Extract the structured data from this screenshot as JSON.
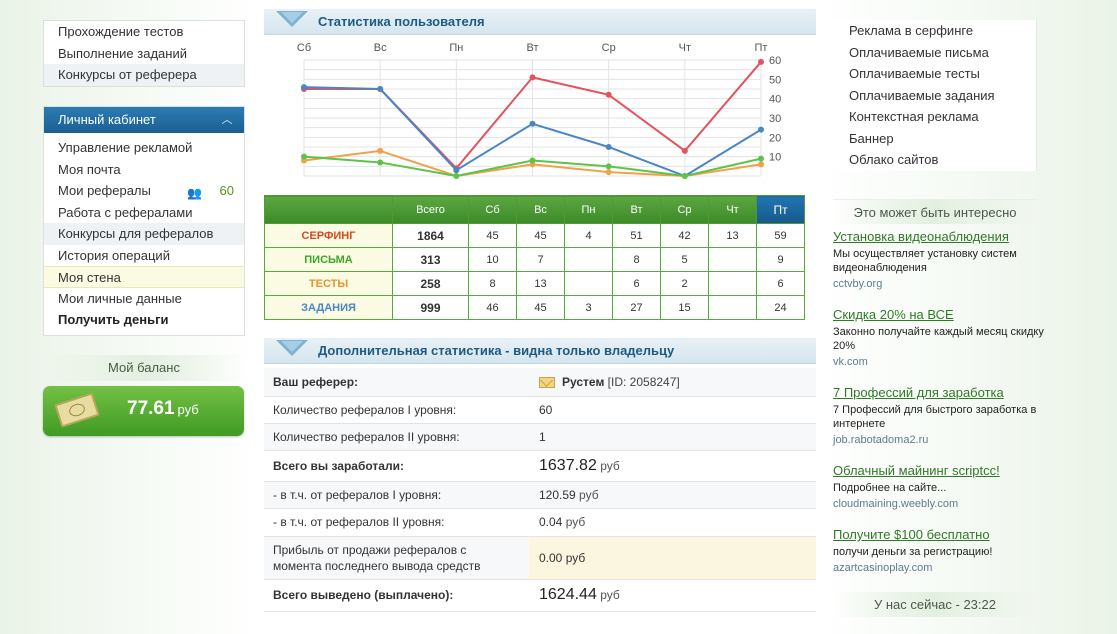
{
  "left_menu_top": [
    "Прохождение тестов",
    "Выполнение заданий",
    "Конкурсы от реферера"
  ],
  "cabinet": {
    "title": "Личный кабинет",
    "items": [
      "Управление рекламой",
      "Моя почта",
      "Мои рефералы",
      "Работа с рефералами",
      "Конкурсы для рефералов",
      "История операций",
      "Моя стена",
      "Мои личные данные",
      "Получить деньги"
    ],
    "referrals_count": "60"
  },
  "balance": {
    "title": "Мой баланс",
    "value": "77.61",
    "currency": "руб"
  },
  "user_stats": {
    "title": "Статистика пользователя",
    "days": [
      "Сб",
      "Вс",
      "Пн",
      "Вт",
      "Ср",
      "Чт",
      "Пт"
    ],
    "y_ticks": [
      "60",
      "50",
      "40",
      "30",
      "20",
      "10"
    ]
  },
  "chart_data": {
    "type": "line",
    "categories": [
      "Сб",
      "Вс",
      "Пн",
      "Вт",
      "Ср",
      "Чт",
      "Пт"
    ],
    "ylim": [
      0,
      60
    ],
    "grid": true,
    "series": [
      {
        "name": "СЕРФИНГ",
        "color": "#e2535f",
        "values": [
          45,
          45,
          4,
          51,
          42,
          13,
          59
        ]
      },
      {
        "name": "ЗАДАНИЯ",
        "color": "#4a86c5",
        "values": [
          46,
          45,
          3,
          27,
          15,
          0,
          24
        ]
      },
      {
        "name": "ТЕСТЫ",
        "color": "#f0a24a",
        "values": [
          8,
          13,
          0,
          6,
          2,
          0,
          6
        ]
      },
      {
        "name": "ПИСЬМА",
        "color": "#5ec34a",
        "values": [
          10,
          7,
          0,
          8,
          5,
          0,
          9
        ]
      }
    ]
  },
  "stats_table": {
    "headers": [
      "",
      "Всего",
      "Сб",
      "Вс",
      "Пн",
      "Вт",
      "Ср",
      "Чт",
      "Пт"
    ],
    "rows": [
      {
        "label": "СЕРФИНГ",
        "color": "#d9481f",
        "cells": [
          "1864",
          "45",
          "45",
          "4",
          "51",
          "42",
          "13",
          "59"
        ]
      },
      {
        "label": "ПИСЬМА",
        "color": "#3ea52b",
        "cells": [
          "313",
          "10",
          "7",
          "",
          "8",
          "5",
          "",
          "9"
        ]
      },
      {
        "label": "ТЕСТЫ",
        "color": "#e5932c",
        "cells": [
          "258",
          "8",
          "13",
          "",
          "6",
          "2",
          "",
          "6"
        ]
      },
      {
        "label": "ЗАДАНИЯ",
        "color": "#4a86c5",
        "cells": [
          "999",
          "46",
          "45",
          "3",
          "27",
          "15",
          "",
          "24"
        ]
      }
    ]
  },
  "extra": {
    "title": "Дополнительная статистика - видна только владельцу",
    "referer_label": "Ваш реферер:",
    "referer_name": "Рустем",
    "referer_id": "[ID: 2058247]",
    "ref1_label": "Количество рефералов I уровня:",
    "ref1_value": "60",
    "ref2_label": "Количество рефералов II уровня:",
    "ref2_value": "1",
    "earned_label": "Всего вы заработали:",
    "earned_value": "1637.82",
    "from1_label": "- в т.ч. от рефералов I уровня:",
    "from1_value": "120.59",
    "from2_label": "- в т.ч. от рефералов II уровня:",
    "from2_value": "0.04",
    "profit_label_1": "Прибыль от продажи рефералов с",
    "profit_label_2": "момента последнего вывода средств",
    "profit_value": "0.00",
    "paid_label": "Всего выведено (выплачено):",
    "paid_value": "1624.44",
    "currency": "руб"
  },
  "right_menu": [
    "Реклама в серфинге",
    "Оплачиваемые письма",
    "Оплачиваемые тесты",
    "Оплачиваемые задания",
    "Контекстная реклама",
    "Баннер",
    "Облако сайтов"
  ],
  "interest": {
    "title": "Это может быть интересно",
    "ads": [
      {
        "title": "Установка видеонаблюдения",
        "desc": "Мы осуществляет установку систем видеонаблюдения",
        "url": "cctvby.org"
      },
      {
        "title": "Скидка 20% на ВСЕ",
        "desc": "Законно получайте каждый месяц скидку 20%",
        "url": "vk.com"
      },
      {
        "title": "7 Профессий для заработка",
        "desc": "7 Профессий для быстрого заработка в интернете",
        "url": "job.rabotadoma2.ru"
      },
      {
        "title": "Облачный майнинг scriptcc!",
        "desc": "Подробнее на сайте...",
        "url": "cloudmaining.weebly.com"
      },
      {
        "title": "Получите $100 бесплатно",
        "desc": "получи деньги за регистрацию!",
        "url": "azartcasinoplay.com"
      }
    ]
  },
  "now_online": "У нас сейчас - 23:22"
}
